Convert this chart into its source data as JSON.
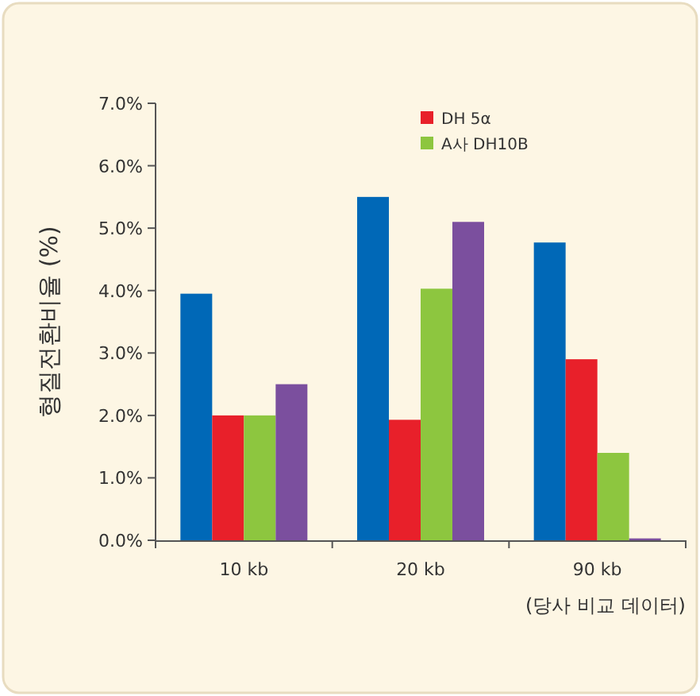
{
  "chart_data": {
    "type": "bar",
    "ylabel": "형질전환비율 (%)",
    "categories": [
      "10 kb",
      "20 kb",
      "90 kb"
    ],
    "series": [
      {
        "color": "#0068b7",
        "values": [
          3.95,
          5.5,
          4.77
        ]
      },
      {
        "name": "DH 5α",
        "color": "#e8202a",
        "values": [
          2.0,
          1.93,
          2.9
        ]
      },
      {
        "name": "A사 DH10B",
        "color": "#8dc63f",
        "values": [
          2.0,
          4.03,
          1.4
        ]
      },
      {
        "color": "#7b4f9e",
        "values": [
          2.5,
          5.1,
          0.03
        ]
      }
    ],
    "ylim": [
      0,
      7
    ],
    "yticks": [
      {
        "value": 0,
        "label": "0.0%"
      },
      {
        "value": 1,
        "label": "1.0%"
      },
      {
        "value": 2,
        "label": "2.0%"
      },
      {
        "value": 3,
        "label": "3.0%"
      },
      {
        "value": 4,
        "label": "4.0%"
      },
      {
        "value": 5,
        "label": "5.0%"
      },
      {
        "value": 6,
        "label": "6.0%"
      },
      {
        "value": 7,
        "label": "7.0%"
      }
    ],
    "legend": "top right",
    "annotations": [
      "(당사 비교 데이터)"
    ]
  }
}
